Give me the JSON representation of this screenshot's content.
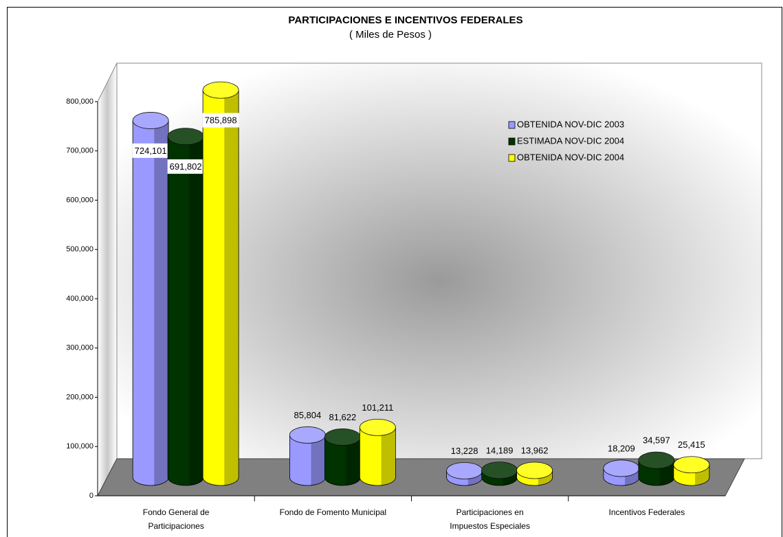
{
  "chart_data": {
    "type": "bar3d",
    "title": "PARTICIPACIONES E INCENTIVOS FEDERALES",
    "subtitle": "( Miles de Pesos )",
    "categories": [
      "Fondo General de Participaciones",
      "Fondo de Fomento Municipal",
      "Participaciones en Impuestos Especiales",
      "Incentivos Federales"
    ],
    "series": [
      {
        "name": "OBTENIDA NOV-DIC 2003",
        "color": "#9999ff",
        "values": [
          724101,
          85804,
          13228,
          18209
        ],
        "value_labels": [
          "724,101",
          "85,804",
          "13,228",
          "18,209"
        ]
      },
      {
        "name": "ESTIMADA NOV-DIC 2004",
        "color": "#003300",
        "values": [
          691802,
          81622,
          14189,
          34597
        ],
        "value_labels": [
          "691,802",
          "81,622",
          "14,189",
          "34,597"
        ]
      },
      {
        "name": "OBTENIDA NOV-DIC 2004",
        "color": "#ffff00",
        "values": [
          785898,
          101211,
          13962,
          25415
        ],
        "value_labels": [
          "785,898",
          "101,211",
          "13,962",
          "25,415"
        ]
      }
    ],
    "ylim": [
      0,
      800000
    ],
    "yticks": [
      0,
      {
        "value": 100000,
        "label": "100,000"
      },
      {
        "value": 200000,
        "label": "200,000"
      },
      {
        "value": 300000,
        "label": "300,000"
      },
      {
        "value": 400000,
        "label": "400,000"
      },
      {
        "value": 500000,
        "label": "500,000"
      },
      {
        "value": 600000,
        "label": "600,000"
      },
      {
        "value": 700000,
        "label": "700,000"
      },
      {
        "value": 800000,
        "label": "800,000"
      }
    ],
    "legend": "upper right"
  }
}
